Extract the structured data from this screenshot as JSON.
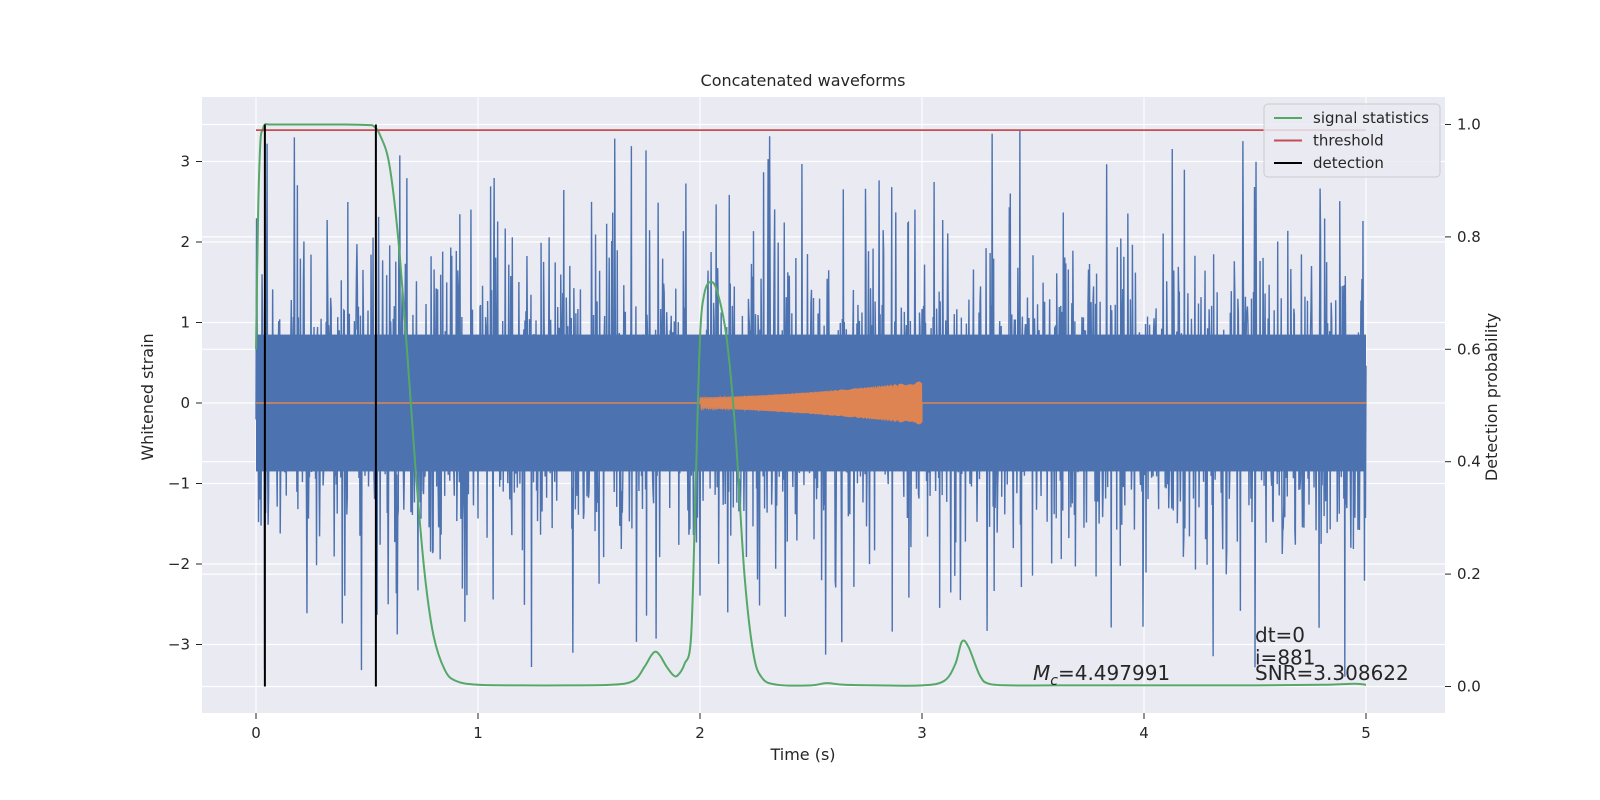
{
  "chart_data": {
    "type": "line",
    "title": "Concatenated waveforms",
    "xlabel": "Time (s)",
    "ylabel_left": "Whitened strain",
    "ylabel_right": "Detection probability",
    "xlim": [
      -0.25,
      5.35
    ],
    "ylim_left": [
      -3.8,
      3.8
    ],
    "ylim_right": [
      -0.05,
      1.05
    ],
    "grid": true,
    "legend_position": "top-right",
    "x_ticks": [
      0,
      1,
      2,
      3,
      4,
      5
    ],
    "x_tick_labels": [
      "0",
      "1",
      "2",
      "3",
      "4",
      "5"
    ],
    "y_left_ticks": [
      -3,
      -2,
      -1,
      0,
      1,
      2,
      3
    ],
    "y_left_tick_labels": [
      "−3",
      "−2",
      "−1",
      "0",
      "1",
      "2",
      "3"
    ],
    "y_right_ticks": [
      0.0,
      0.2,
      0.4,
      0.6,
      0.8,
      1.0
    ],
    "y_right_tick_labels": [
      "0.0",
      "0.2",
      "0.4",
      "0.6",
      "0.8",
      "1.0"
    ],
    "series": [
      {
        "name": "",
        "axis": "left",
        "kind": "noise",
        "color": "#4c72b0",
        "x_range": [
          0,
          5
        ],
        "typical_amplitude": 1.0,
        "peak_amplitude": 3.4
      },
      {
        "name": "",
        "axis": "left",
        "kind": "chirp",
        "color": "#dd8452",
        "x_range": [
          0,
          5
        ],
        "chirp_range": [
          2.0,
          3.0
        ],
        "amplitude_start": 0.07,
        "amplitude_end": 0.27
      },
      {
        "name": "signal statistics",
        "axis": "right",
        "color": "#55a868",
        "x": [
          0.0,
          0.01,
          0.02,
          0.03,
          0.04,
          0.06,
          0.1,
          0.2,
          0.3,
          0.4,
          0.5,
          0.53,
          0.56,
          0.6,
          0.64,
          0.68,
          0.72,
          0.76,
          0.8,
          0.85,
          0.9,
          1.0,
          1.2,
          1.4,
          1.6,
          1.7,
          1.75,
          1.78,
          1.8,
          1.82,
          1.85,
          1.88,
          1.9,
          1.93,
          1.96,
          1.98,
          2.0,
          2.02,
          2.05,
          2.08,
          2.12,
          2.16,
          2.2,
          2.24,
          2.28,
          2.35,
          2.5,
          2.57,
          2.65,
          2.8,
          3.0,
          3.1,
          3.15,
          3.18,
          3.21,
          3.26,
          3.3,
          3.4,
          3.6,
          4.0,
          4.5,
          4.8,
          4.95,
          5.0
        ],
        "values": [
          0.6,
          0.85,
          0.97,
          0.99,
          1.0,
          1.0,
          1.0,
          1.0,
          1.0,
          1.0,
          0.999,
          0.997,
          0.98,
          0.93,
          0.8,
          0.6,
          0.38,
          0.2,
          0.09,
          0.03,
          0.01,
          0.003,
          0.002,
          0.002,
          0.003,
          0.01,
          0.035,
          0.055,
          0.062,
          0.055,
          0.035,
          0.02,
          0.02,
          0.04,
          0.09,
          0.35,
          0.62,
          0.7,
          0.72,
          0.7,
          0.62,
          0.45,
          0.2,
          0.06,
          0.015,
          0.003,
          0.002,
          0.006,
          0.003,
          0.002,
          0.002,
          0.01,
          0.04,
          0.08,
          0.07,
          0.02,
          0.005,
          0.002,
          0.002,
          0.002,
          0.002,
          0.003,
          0.005,
          0.003
        ]
      },
      {
        "name": "threshold",
        "axis": "right",
        "color": "#c44e52",
        "x": [
          0.0,
          5.0
        ],
        "values": [
          0.99,
          0.99
        ]
      },
      {
        "name": "detection",
        "axis": "right",
        "color": "#000000",
        "x_positions": [
          0.04,
          0.54
        ],
        "y_range": [
          0.0,
          1.0
        ]
      }
    ],
    "annotations": [
      {
        "text_math_symbol": "M",
        "text_math_subscript": "c",
        "text_rest": "=4.497991",
        "x": 3.5,
        "y_left": -3.44
      },
      {
        "text": "dt=0",
        "x": 4.5,
        "y_left": -2.97
      },
      {
        "text": "i=881",
        "x": 4.5,
        "y_left": -3.25
      },
      {
        "text": "SNR=3.308622",
        "x": 4.5,
        "y_left": -3.44
      }
    ]
  }
}
